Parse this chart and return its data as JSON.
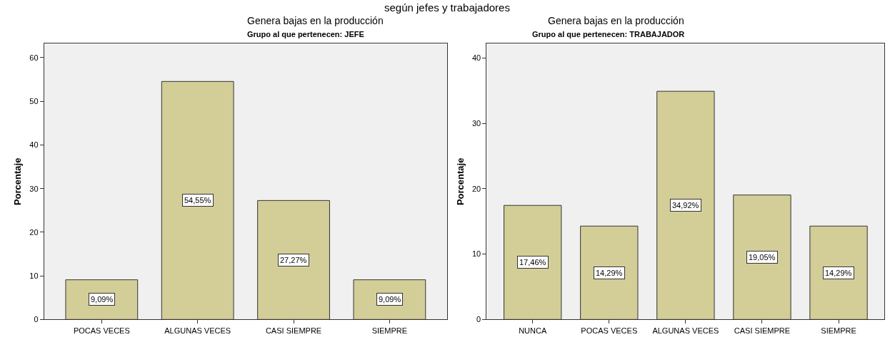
{
  "chart_data": [
    {
      "type": "bar",
      "title": "Genera bajas en la producción",
      "subtitle": "Grupo al que pertenecen: JEFE",
      "ylabel": "Porcentaje",
      "annotations": [
        "según jefes y trabajadores"
      ],
      "categories": [
        "POCAS VECES",
        "ALGUNAS VECES",
        "CASI SIEMPRE",
        "SIEMPRE"
      ],
      "series": [
        {
          "color": "#d3ce97",
          "values": [
            9.09,
            54.55,
            27.27,
            9.09
          ],
          "value_labels": [
            "9,09%",
            "54,55%",
            "27,27%",
            "9,09%"
          ]
        }
      ],
      "ylim": [
        0,
        63.2
      ],
      "yticks": [
        0,
        10,
        20,
        30,
        40,
        50,
        60
      ],
      "grid": false
    },
    {
      "type": "bar",
      "title": "Genera bajas en la producción",
      "subtitle": "Grupo al que pertenecen: TRABAJADOR",
      "ylabel": "Porcentaje",
      "categories": [
        "NUNCA",
        "POCAS VECES",
        "ALGUNAS VECES",
        "CASI SIEMPRE",
        "SIEMPRE"
      ],
      "series": [
        {
          "color": "#d3ce97",
          "values": [
            17.46,
            14.29,
            34.92,
            19.05,
            14.29
          ],
          "value_labels": [
            "17,46%",
            "14,29%",
            "34,92%",
            "19,05%",
            "14,29%"
          ]
        }
      ],
      "ylim": [
        0,
        42.2
      ],
      "yticks": [
        0,
        10,
        20,
        30,
        40
      ],
      "grid": false
    }
  ]
}
